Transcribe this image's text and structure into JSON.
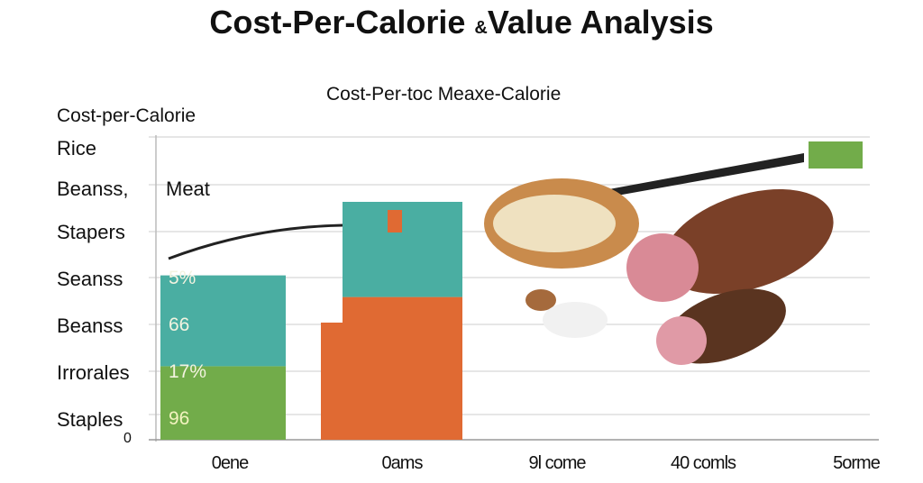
{
  "title": {
    "main": "Cost-Per-Calorie",
    "amp": "&",
    "rest": "Value Analysis"
  },
  "subtitle": "Cost-Per-toc Meaxe-Calorie",
  "ylabel": "Cost-per-Calorie",
  "annotation": "Meat",
  "colors": {
    "teal": "#4aaea2",
    "green": "#72ac4a",
    "orange": "#e06a33",
    "line": "#222222",
    "grid": "#dddddd"
  },
  "chart_data": {
    "type": "bar",
    "title": "Cost-Per-toc Meaxe-Calorie",
    "ylabel": "Cost-per-Calorie",
    "xlabel": "",
    "categories": [
      "0ene",
      "0ams",
      "9l come",
      "40 comls",
      "5orme"
    ],
    "y_tick_labels": [
      "Rice",
      "Beanss,",
      "Stapers",
      "Seanss",
      "Beanss",
      "Irrorales",
      "Staples",
      "0"
    ],
    "ylim": [
      0,
      7
    ],
    "grid": true,
    "series": [
      {
        "name": "green",
        "values": [
          1.7,
          0,
          0,
          0,
          0
        ]
      },
      {
        "name": "teal",
        "values": [
          2.1,
          2.2,
          0,
          0,
          0
        ]
      },
      {
        "name": "orange",
        "values": [
          0,
          3.3,
          0,
          0,
          0
        ]
      }
    ],
    "bar_labels": [
      "5%",
      "66",
      "17%",
      "96"
    ]
  }
}
